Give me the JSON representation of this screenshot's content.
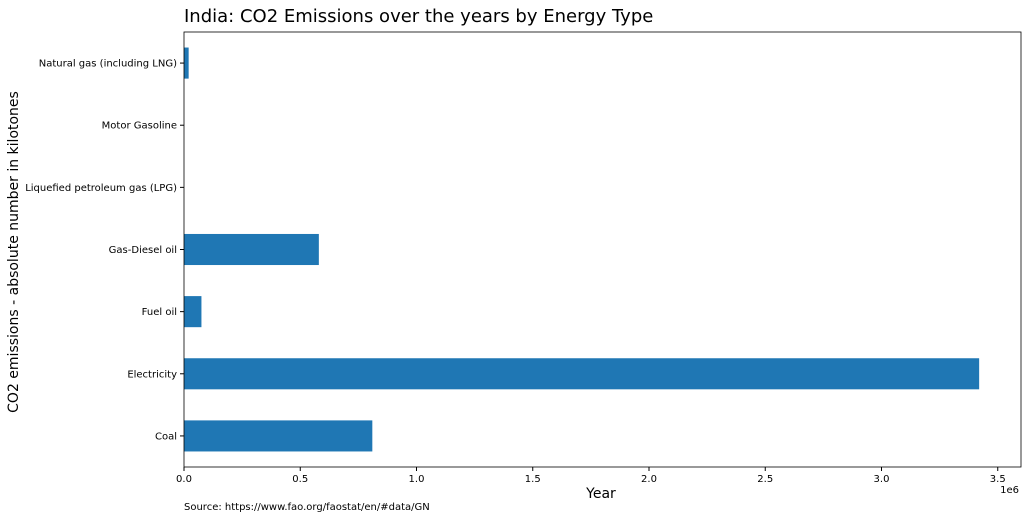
{
  "chart_data": {
    "type": "bar",
    "orientation": "horizontal",
    "title": "India: CO2 Emissions over the years by Energy Type",
    "xlabel": "Year",
    "ylabel": "CO2 emissions - absolute number in kilotones",
    "x_offset_label": "1e6",
    "source": "Source: https://www.fao.org/faostat/en/#data/GN",
    "xlim": [
      0,
      3.6
    ],
    "x_ticks": [
      0.0,
      0.5,
      1.0,
      1.5,
      2.0,
      2.5,
      3.0,
      3.5
    ],
    "x_tick_labels": [
      "0.0",
      "0.5",
      "1.0",
      "1.5",
      "2.0",
      "2.5",
      "3.0",
      "3.5"
    ],
    "grid": false,
    "legend": "none",
    "bar_color": "#1f77b4",
    "categories": [
      "Coal",
      "Electricity",
      "Fuel oil",
      "Gas-Diesel oil",
      "Liquefied petroleum gas (LPG)",
      "Motor Gasoline",
      "Natural gas (including LNG)"
    ],
    "values": [
      0.81,
      3.42,
      0.075,
      0.58,
      0.0,
      0.0,
      0.02
    ]
  }
}
